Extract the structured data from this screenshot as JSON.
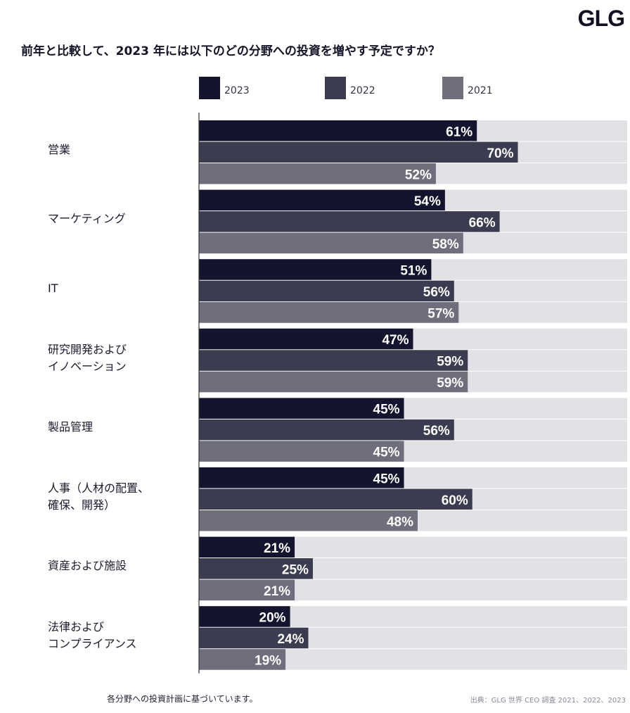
{
  "brand": "GLG",
  "footnote": "各分野への投資計画に基づいています。",
  "source": "出典：GLG 世界 CEO 調査 2021、2022、2023",
  "colors": {
    "s2023": "#14142e",
    "s2022": "#3c3c50",
    "s2021": "#6e6e7c",
    "track": "#e2e2e6",
    "axis": "#333333",
    "label_text": "#ffffff"
  },
  "chart_data": {
    "type": "bar",
    "orientation": "horizontal",
    "title": "前年と比較して、2023 年には以下のどの分野への投資を増やす予定ですか？",
    "categories": [
      "営業",
      "マーケティング",
      "IT",
      "研究開発および\nイノベーション",
      "製品管理",
      "人事（人材の配置、\n確保、開発）",
      "資産および施設",
      "法律および\nコンプライアンス"
    ],
    "series": [
      {
        "name": "2023",
        "values": [
          61,
          54,
          51,
          47,
          45,
          45,
          21,
          20
        ]
      },
      {
        "name": "2022",
        "values": [
          70,
          66,
          56,
          59,
          56,
          60,
          25,
          24
        ]
      },
      {
        "name": "2021",
        "values": [
          52,
          58,
          57,
          59,
          45,
          48,
          21,
          19
        ]
      }
    ],
    "value_suffix": "%",
    "xlim": [
      0,
      94
    ],
    "legend_position": "top",
    "grid": false
  }
}
